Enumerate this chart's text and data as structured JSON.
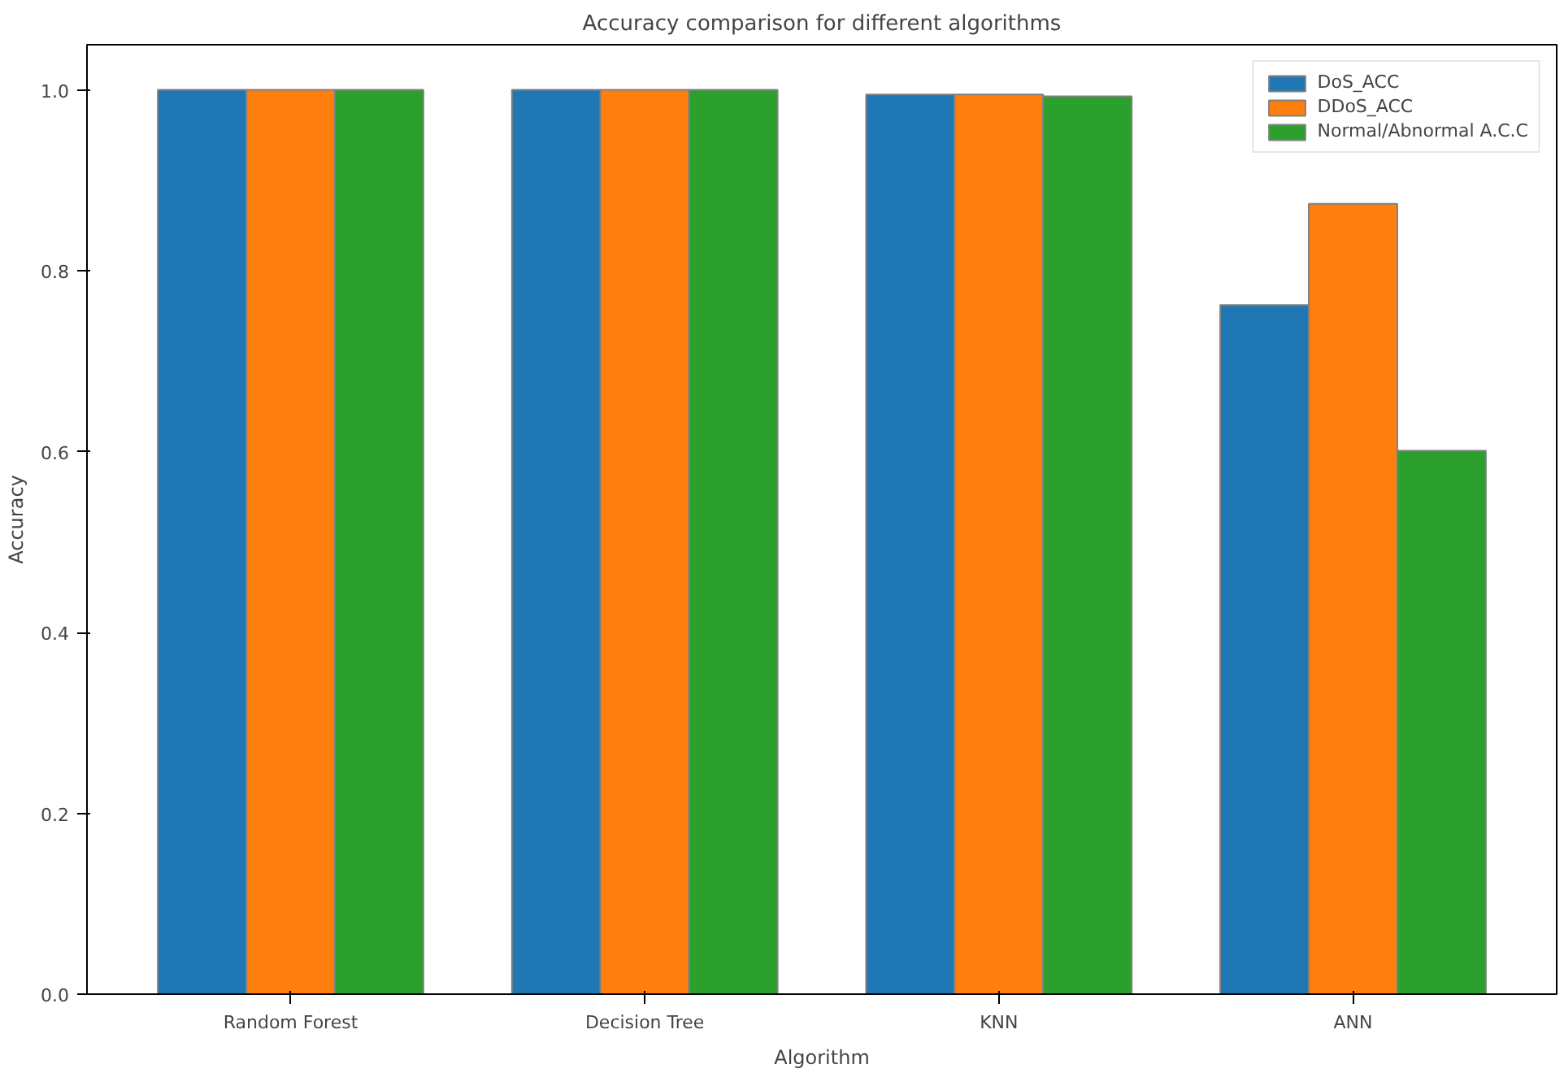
{
  "chart_data": {
    "type": "bar",
    "title": "Accuracy comparison for different algorithms",
    "xlabel": "Algorithm",
    "ylabel": "Accuracy",
    "categories": [
      "Random Forest",
      "Decision Tree",
      "KNN",
      "ANN"
    ],
    "series": [
      {
        "name": "DoS_ACC",
        "color": "#1f77b4",
        "values": [
          1.0,
          1.0,
          0.995,
          0.762
        ]
      },
      {
        "name": "DDoS_ACC",
        "color": "#ff7f0e",
        "values": [
          1.0,
          1.0,
          0.995,
          0.874
        ]
      },
      {
        "name": "Normal/Abnormal A.C.C",
        "color": "#2ca02c",
        "values": [
          1.0,
          1.0,
          0.993,
          0.601
        ]
      }
    ],
    "ylim": [
      0,
      1.05
    ],
    "yticks": [
      {
        "value": 0,
        "label": "0.0"
      },
      {
        "value": 0.2,
        "label": "0.2"
      },
      {
        "value": 0.4,
        "label": "0.4"
      },
      {
        "value": 0.6,
        "label": "0.6"
      },
      {
        "value": 0.8,
        "label": "0.8"
      },
      {
        "value": 1.0,
        "label": "1.0"
      }
    ],
    "grid": false,
    "legend": "top right"
  }
}
